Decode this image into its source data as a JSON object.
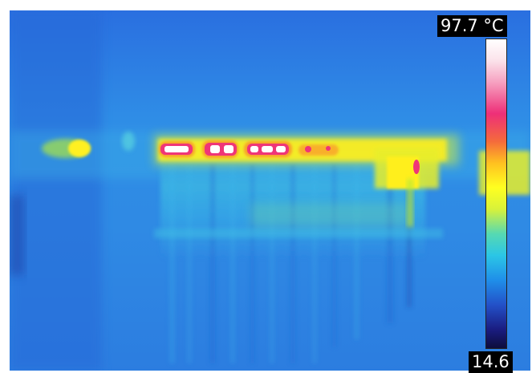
{
  "image": {
    "kind": "thermal-camera-image",
    "palette": [
      "#ffffff",
      "#ee2f78",
      "#ffc020",
      "#ffff20",
      "#2bc6e6",
      "#1f8ee9",
      "#1a1c80"
    ]
  },
  "scale": {
    "max_label": "97.7 °C",
    "min_label": "14.6"
  }
}
